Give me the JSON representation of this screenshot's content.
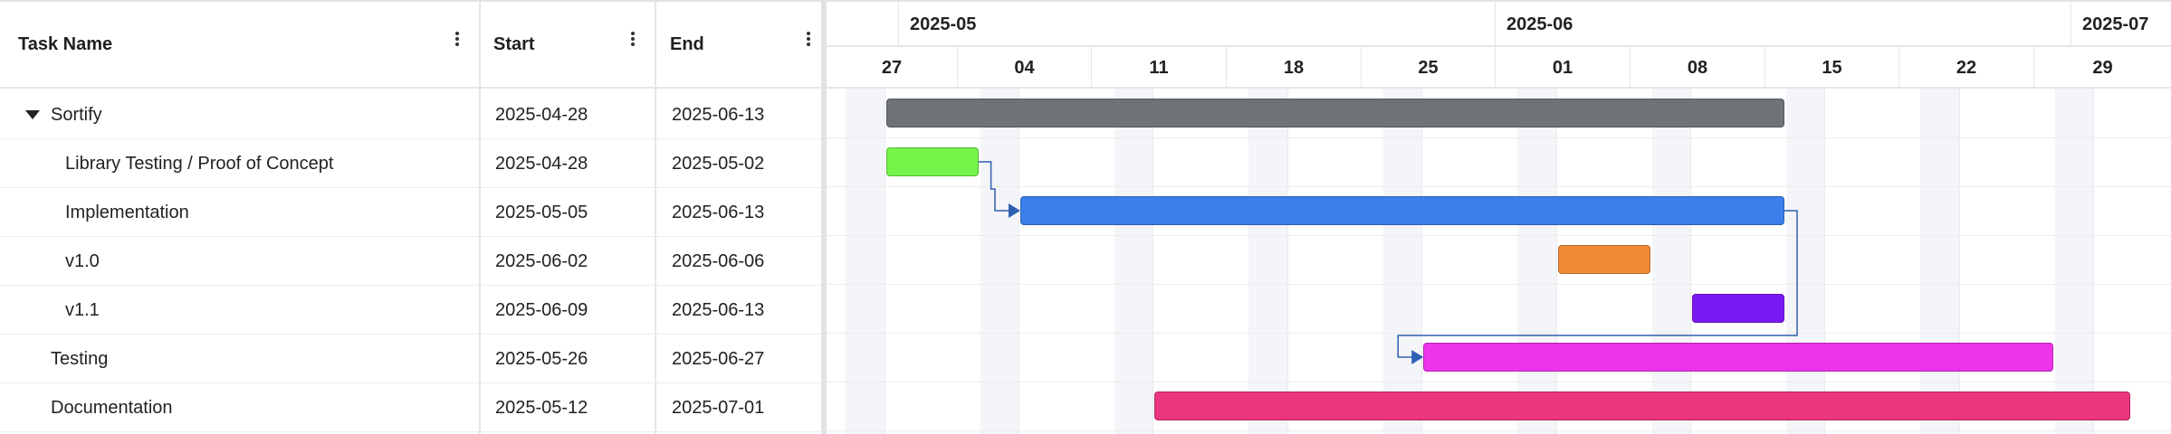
{
  "grid": {
    "columns": [
      {
        "label": "Task Name"
      },
      {
        "label": "Start"
      },
      {
        "label": "End"
      }
    ],
    "rows": [
      {
        "name": "Sortify",
        "start": "2025-04-28",
        "end": "2025-06-13",
        "level": 0,
        "parent": true
      },
      {
        "name": "Library Testing / Proof of Concept",
        "start": "2025-04-28",
        "end": "2025-05-02",
        "level": 1
      },
      {
        "name": "Implementation",
        "start": "2025-05-05",
        "end": "2025-06-13",
        "level": 1
      },
      {
        "name": "v1.0",
        "start": "2025-06-02",
        "end": "2025-06-06",
        "level": 1
      },
      {
        "name": "v1.1",
        "start": "2025-06-09",
        "end": "2025-06-13",
        "level": 1
      },
      {
        "name": "Testing",
        "start": "2025-05-26",
        "end": "2025-06-27",
        "level": 0
      },
      {
        "name": "Documentation",
        "start": "2025-05-12",
        "end": "2025-07-01",
        "level": 0
      }
    ]
  },
  "timeline": {
    "months": [
      "2025-05",
      "2025-06",
      "2025-07"
    ],
    "weeks": [
      "27",
      "04",
      "11",
      "18",
      "25",
      "01",
      "08",
      "15",
      "22",
      "29"
    ]
  },
  "bars": [
    {
      "task": "Sortify",
      "start": "2025-04-28",
      "end": "2025-06-13",
      "color": "#6e7378"
    },
    {
      "task": "Library Testing / Proof of Concept",
      "start": "2025-04-28",
      "end": "2025-05-02",
      "color": "#75f54a"
    },
    {
      "task": "Implementation",
      "start": "2025-05-05",
      "end": "2025-06-13",
      "color": "#3b7eec"
    },
    {
      "task": "v1.0",
      "start": "2025-06-02",
      "end": "2025-06-06",
      "color": "#ef8a36"
    },
    {
      "task": "v1.1",
      "start": "2025-06-09",
      "end": "2025-06-13",
      "color": "#7a18f2"
    },
    {
      "task": "Testing",
      "start": "2025-05-26",
      "end": "2025-06-27",
      "color": "#ed34ea"
    },
    {
      "task": "Documentation",
      "start": "2025-05-12",
      "end": "2025-07-01",
      "color": "#eb357d"
    }
  ],
  "links": [
    {
      "from": "Library Testing / Proof of Concept",
      "to": "Implementation"
    },
    {
      "from": "Implementation",
      "to": "Testing"
    }
  ],
  "colors": {
    "link": "#2f5fb3",
    "weekend": "#f3f5f8",
    "gridline": "#e6e6e6"
  }
}
